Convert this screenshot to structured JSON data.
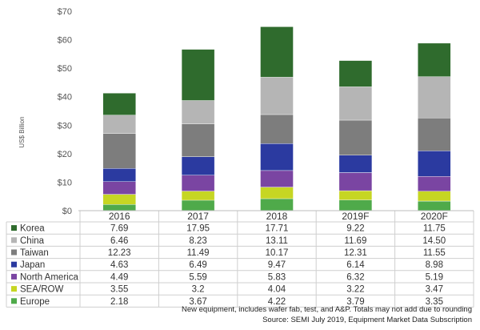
{
  "chart_data": {
    "type": "bar",
    "stacked": true,
    "categories": [
      "2016",
      "2017",
      "2018",
      "2019F",
      "2020F"
    ],
    "ylabel": "US$ Billion",
    "ylim": [
      0,
      70
    ],
    "yticks": [
      "$0",
      "$10",
      "$20",
      "$30",
      "$40",
      "$50",
      "$60",
      "$70"
    ],
    "grid": false,
    "legend": "table-below",
    "series": [
      {
        "name": "Europe",
        "color": "#4faa4a",
        "values": [
          "2.18",
          "3.67",
          "4.22",
          "3.79",
          "3.35"
        ]
      },
      {
        "name": "SEA/ROW",
        "color": "#c6d623",
        "values": [
          "3.55",
          "3.2",
          "4.04",
          "3.22",
          "3.47"
        ]
      },
      {
        "name": "North America",
        "color": "#7a45a2",
        "values": [
          "4.49",
          "5.59",
          "5.83",
          "6.32",
          "5.19"
        ]
      },
      {
        "name": "Japan",
        "color": "#2b3aa0",
        "values": [
          "4.63",
          "6.49",
          "9.47",
          "6.14",
          "8.98"
        ]
      },
      {
        "name": "Taiwan",
        "color": "#7d7d7d",
        "values": [
          "12.23",
          "11.49",
          "10.17",
          "12.31",
          "11.55"
        ]
      },
      {
        "name": "China",
        "color": "#b5b5b5",
        "values": [
          "6.46",
          "8.23",
          "13.11",
          "11.69",
          "14.50"
        ]
      },
      {
        "name": "Korea",
        "color": "#2f6b2d",
        "values": [
          "7.69",
          "17.95",
          "17.71",
          "9.22",
          "11.75"
        ]
      }
    ],
    "notes": [
      "New equipment, includes wafer fab, test, and A&P. Totals may not add due to rounding",
      "Source: SEMI July 2019, Equipment Market Data Subscription"
    ]
  }
}
